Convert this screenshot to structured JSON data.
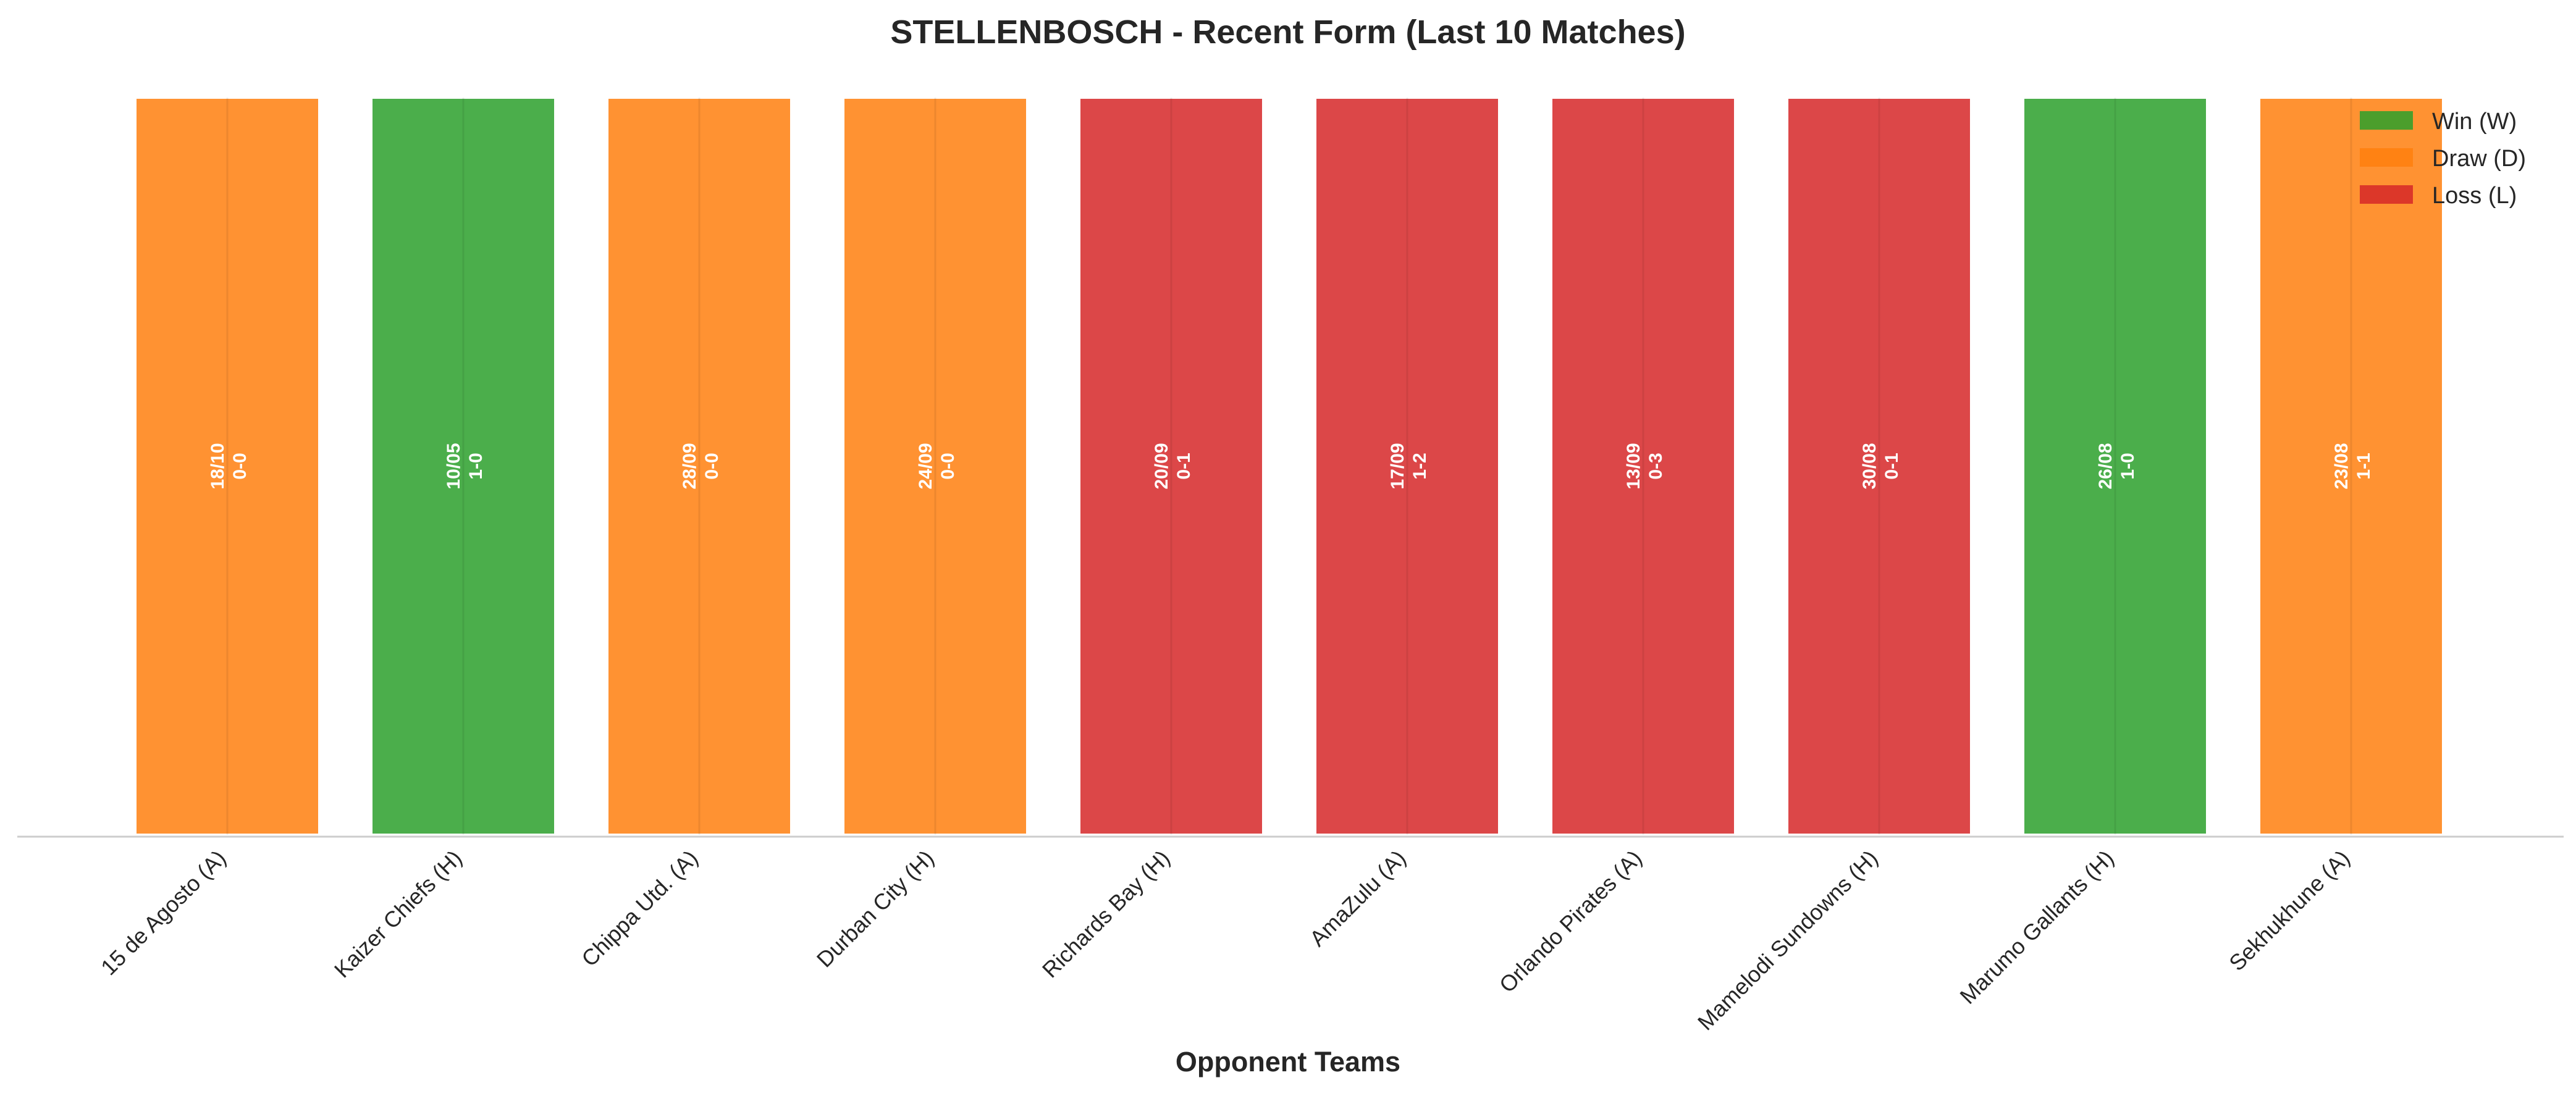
{
  "chart_data": {
    "type": "bar",
    "title": "STELLENBOSCH - Recent Form (Last 10 Matches)",
    "xlabel": "Opponent Teams",
    "ylabel": "",
    "ylim": [
      0,
      1
    ],
    "grid": false,
    "legend_position": "top-right",
    "categories": [
      "15 de Agosto (A)",
      "Kaizer Chiefs (H)",
      "Chippa Utd. (A)",
      "Durban City (H)",
      "Richards Bay (H)",
      "AmaZulu (A)",
      "Orlando Pirates (A)",
      "Mamelodi Sundowns (H)",
      "Marumo Gallants (H)",
      "Sekhukhune (A)"
    ],
    "values": [
      1,
      1,
      1,
      1,
      1,
      1,
      1,
      1,
      1,
      1
    ],
    "results": [
      "D",
      "W",
      "D",
      "D",
      "L",
      "L",
      "L",
      "L",
      "W",
      "D"
    ],
    "dates": [
      "18/10",
      "10/05",
      "28/09",
      "24/09",
      "20/09",
      "17/09",
      "13/09",
      "30/08",
      "26/08",
      "23/08"
    ],
    "scores": [
      "0-0",
      "1-0",
      "0-0",
      "0-0",
      "0-1",
      "1-2",
      "0-3",
      "0-1",
      "1-0",
      "1-1"
    ],
    "legend": [
      {
        "key": "W",
        "label": "Win (W)",
        "color": "#2ca02c"
      },
      {
        "key": "D",
        "label": "Draw (D)",
        "color": "#ff7f0e"
      },
      {
        "key": "L",
        "label": "Loss (L)",
        "color": "#d62728"
      }
    ]
  }
}
